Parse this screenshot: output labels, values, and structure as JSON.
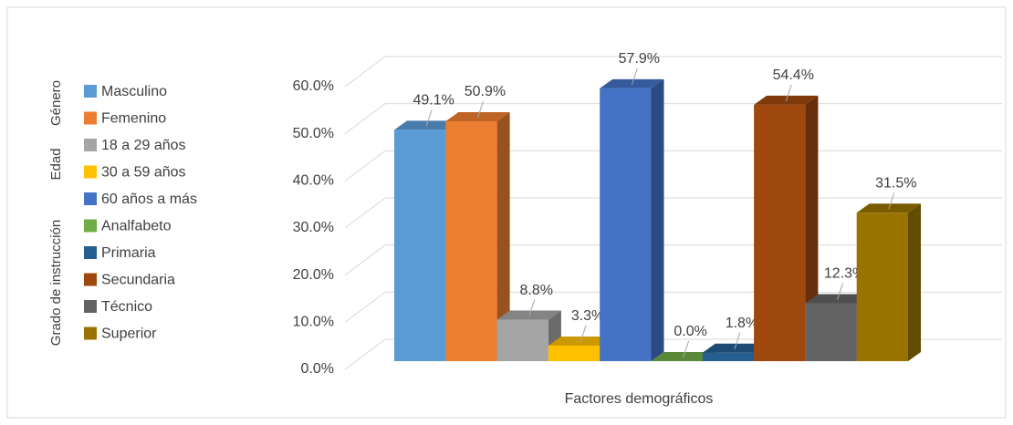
{
  "chart_data": {
    "type": "bar3d",
    "x_label": "Factores demográficos",
    "legend_groups": [
      "Género",
      "Edad",
      "Grado de instrucción"
    ],
    "ylim": [
      0,
      60
    ],
    "yticks": [
      {
        "value": 0,
        "label": "0.0%"
      },
      {
        "value": 10,
        "label": "10.0%"
      },
      {
        "value": 20,
        "label": "20.0%"
      },
      {
        "value": 30,
        "label": "30.0%"
      },
      {
        "value": 40,
        "label": "40.0%"
      },
      {
        "value": 50,
        "label": "50.0%"
      },
      {
        "value": 60,
        "label": "60.0%"
      }
    ],
    "grid": true,
    "series": [
      {
        "name": "Masculino",
        "color": "#5b9bd5",
        "values": [
          49.1
        ],
        "value_labels": [
          "49.1%"
        ]
      },
      {
        "name": "Femenino",
        "color": "#ed7d31",
        "values": [
          50.9
        ],
        "value_labels": [
          "50.9%"
        ]
      },
      {
        "name": "18 a 29 años",
        "color": "#a5a5a5",
        "values": [
          8.8
        ],
        "value_labels": [
          "8.8%"
        ]
      },
      {
        "name": "30 a 59 años",
        "color": "#ffc000",
        "values": [
          3.3
        ],
        "value_labels": [
          "3.3%"
        ]
      },
      {
        "name": "60 años a más",
        "color": "#4472c4",
        "values": [
          57.9
        ],
        "value_labels": [
          "57.9%"
        ]
      },
      {
        "name": "Analfabeto",
        "color": "#70ad47",
        "values": [
          0.0
        ],
        "value_labels": [
          "0.0%"
        ]
      },
      {
        "name": "Primaria",
        "color": "#255e91",
        "values": [
          1.8
        ],
        "value_labels": [
          "1.8%"
        ]
      },
      {
        "name": "Secundaria",
        "color": "#9e480e",
        "values": [
          54.4
        ],
        "value_labels": [
          "54.4%"
        ]
      },
      {
        "name": "Técnico",
        "color": "#636363",
        "values": [
          12.3
        ],
        "value_labels": [
          "12.3%"
        ]
      },
      {
        "name": "Superior",
        "color": "#997300",
        "values": [
          31.5
        ],
        "value_labels": [
          "31.5%"
        ]
      }
    ]
  }
}
